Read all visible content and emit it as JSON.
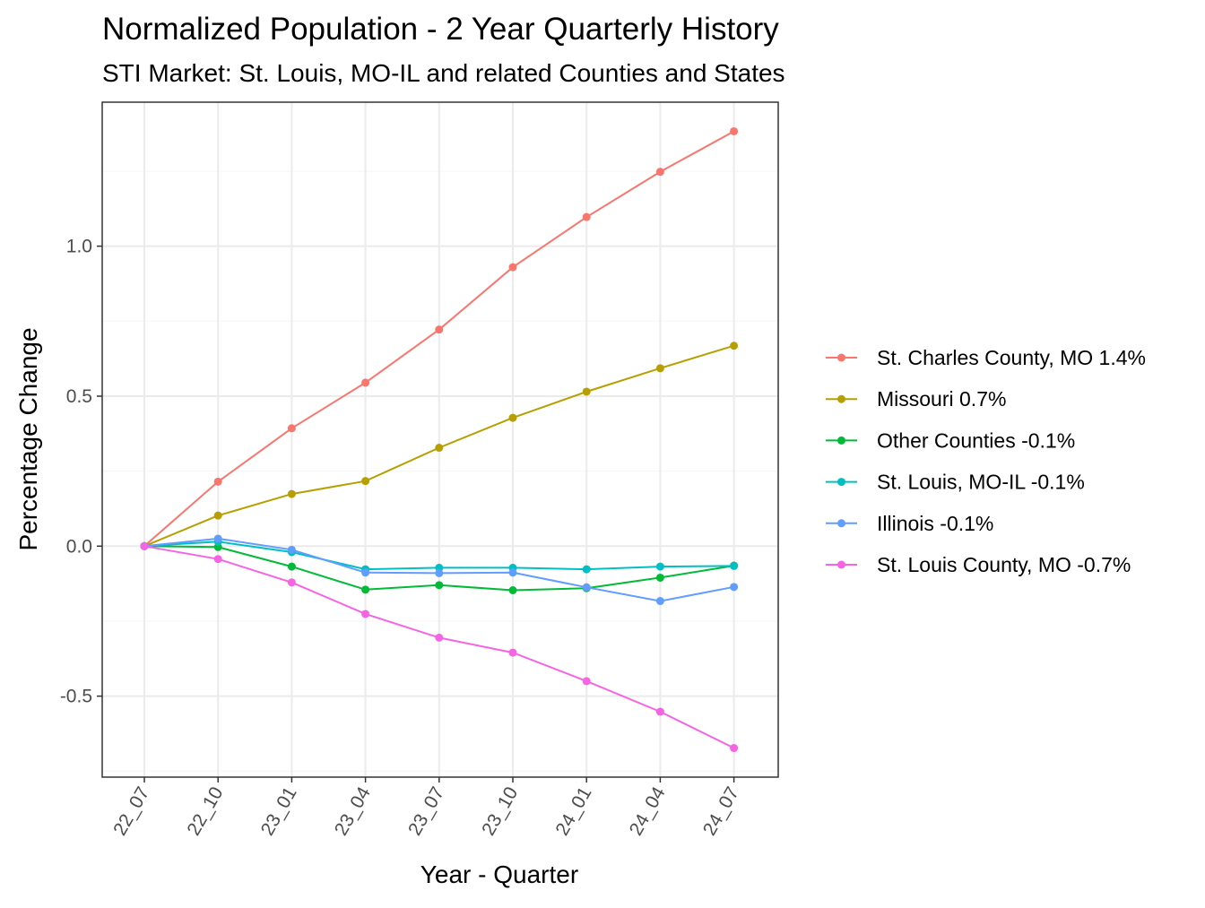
{
  "chart_data": {
    "type": "line",
    "title": "Normalized Population - 2 Year Quarterly History",
    "subtitle": "STI Market: St. Louis, MO-IL and related Counties and States",
    "xlabel": "Year - Quarter",
    "ylabel": "Percentage Change",
    "categories": [
      "22_07",
      "22_10",
      "23_01",
      "23_04",
      "23_07",
      "23_10",
      "24_01",
      "24_04",
      "24_07"
    ],
    "ylim": [
      -0.77,
      1.48
    ],
    "yticks": [
      -0.5,
      0.0,
      0.5,
      1.0
    ],
    "ytick_labels": [
      "-0.5",
      "0.0",
      "0.5",
      "1.0"
    ],
    "grid": true,
    "legend_position": "right",
    "series": [
      {
        "name": "St. Charles County, MO 1.4%",
        "color": "#F8766D",
        "values": [
          0.0,
          0.215,
          0.393,
          0.545,
          0.722,
          0.93,
          1.097,
          1.248,
          1.383
        ]
      },
      {
        "name": "Missouri 0.7%",
        "color": "#B79F00",
        "values": [
          0.0,
          0.102,
          0.174,
          0.217,
          0.328,
          0.428,
          0.515,
          0.593,
          0.668
        ]
      },
      {
        "name": "Other Counties -0.1%",
        "color": "#00BA38",
        "values": [
          0.0,
          -0.003,
          -0.068,
          -0.145,
          -0.13,
          -0.147,
          -0.14,
          -0.105,
          -0.065
        ]
      },
      {
        "name": "St. Louis, MO-IL -0.1%",
        "color": "#00BFC4",
        "values": [
          0.0,
          0.015,
          -0.02,
          -0.077,
          -0.072,
          -0.072,
          -0.077,
          -0.068,
          -0.066
        ]
      },
      {
        "name": "Illinois -0.1%",
        "color": "#619CFF",
        "values": [
          0.0,
          0.025,
          -0.012,
          -0.088,
          -0.09,
          -0.088,
          -0.137,
          -0.183,
          -0.136
        ]
      },
      {
        "name": "St. Louis County, MO -0.7%",
        "color": "#F564E3",
        "values": [
          0.0,
          -0.043,
          -0.121,
          -0.226,
          -0.305,
          -0.355,
          -0.45,
          -0.552,
          -0.673
        ]
      }
    ]
  }
}
